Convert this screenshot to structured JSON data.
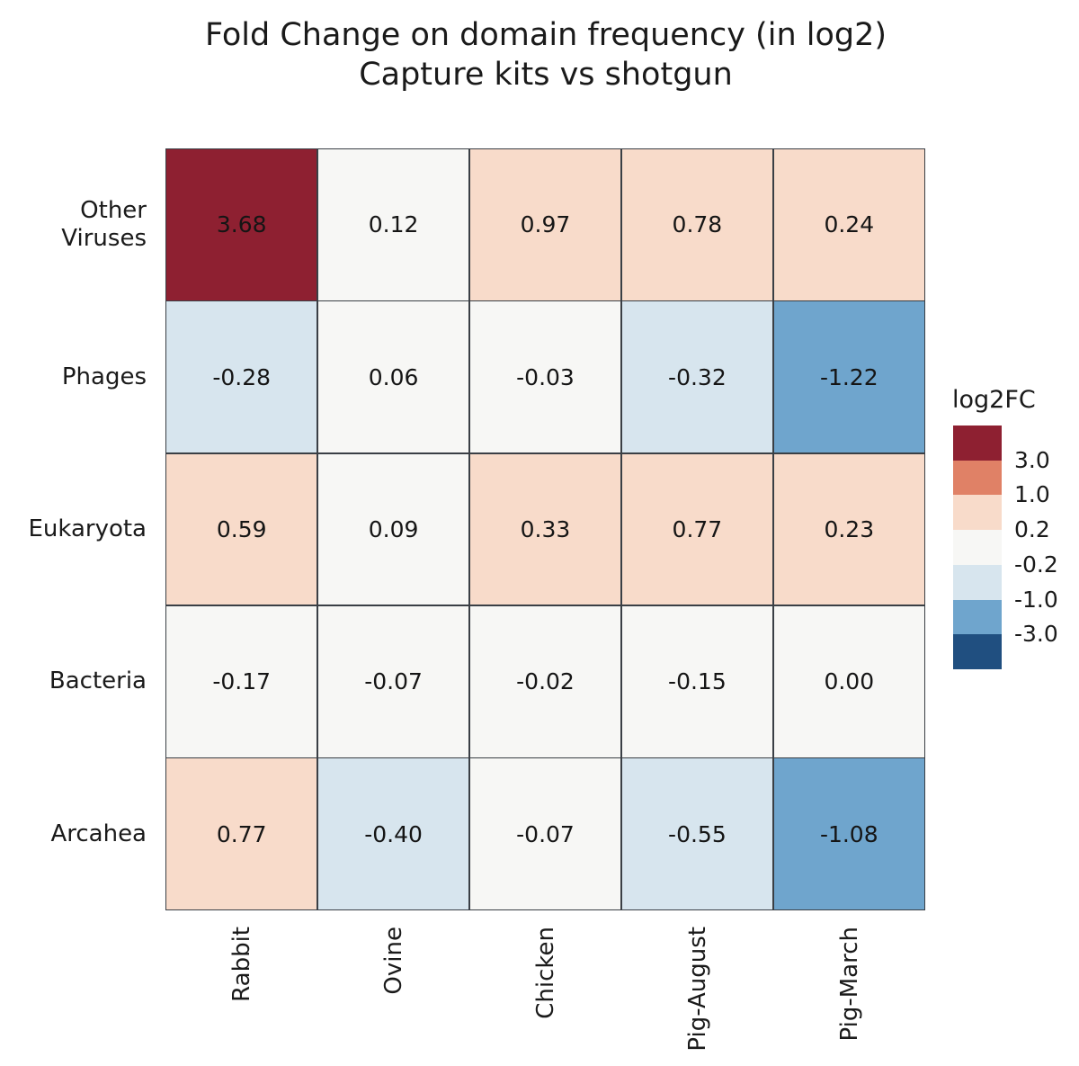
{
  "figure": {
    "title_line1": "Fold Change on domain frequency (in log2)",
    "title_line2": "Capture kits vs shotgun"
  },
  "chart_data": {
    "type": "heatmap",
    "title": "Fold Change on domain frequency (in log2)\nCapture kits vs shotgun",
    "columns": [
      "Rabbit",
      "Ovine",
      "Chicken",
      "Pig-August",
      "Pig-March"
    ],
    "rows": [
      "Other\nViruses",
      "Phages",
      "Eukaryota",
      "Bacteria",
      "Arcahea"
    ],
    "matrix": [
      [
        3.68,
        0.12,
        0.97,
        0.78,
        0.24
      ],
      [
        -0.28,
        0.06,
        -0.03,
        -0.32,
        -1.22
      ],
      [
        0.59,
        0.09,
        0.33,
        0.77,
        0.23
      ],
      [
        -0.17,
        -0.07,
        -0.02,
        -0.15,
        0.0
      ],
      [
        0.77,
        -0.4,
        -0.07,
        -0.55,
        -1.08
      ]
    ],
    "value_decimals": 2,
    "legend": {
      "title": "log2FC",
      "tick_labels": [
        "3.0",
        "1.0",
        "0.2",
        "-0.2",
        "-1.0",
        "-3.0"
      ],
      "breaks": [
        3.0,
        1.0,
        0.2,
        -0.2,
        -1.0,
        -3.0
      ],
      "bin_colors": [
        "#8e2031",
        "#e08166",
        "#f8dbca",
        "#f7f7f5",
        "#d7e5ee",
        "#6fa5cd",
        "#204f80"
      ]
    },
    "grid_line_color": "#3a3f45",
    "background_color": "#ffffff"
  }
}
